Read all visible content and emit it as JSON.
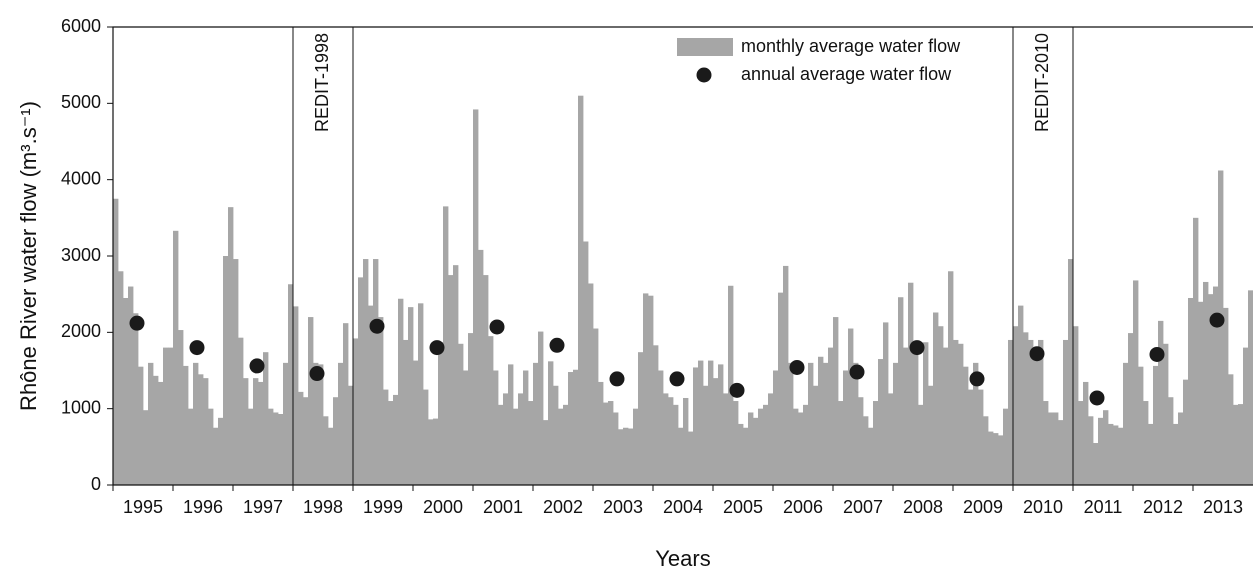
{
  "chart_data": {
    "type": "bar",
    "x_label": "Years",
    "y_label": "Rhône River water flow (m³.s⁻¹)",
    "categories": [
      "1995",
      "1996",
      "1997",
      "1998",
      "1999",
      "2000",
      "2001",
      "2002",
      "2003",
      "2004",
      "2005",
      "2006",
      "2007",
      "2008",
      "2009",
      "2010",
      "2011",
      "2012",
      "2013"
    ],
    "series": [
      {
        "name": "monthly average water flow",
        "type": "bar",
        "color": "#a6a6a6",
        "values": [
          [
            3750,
            2800,
            2450,
            2600,
            2250,
            1550,
            980,
            1600,
            1430,
            1350,
            1800,
            1800
          ],
          [
            3330,
            2030,
            1560,
            1000,
            1600,
            1450,
            1400,
            1000,
            750,
            880,
            3000,
            3640
          ],
          [
            2960,
            1930,
            1400,
            1000,
            1400,
            1350,
            1740,
            1000,
            950,
            930,
            1600,
            2630
          ],
          [
            2340,
            1220,
            1150,
            2200,
            1600,
            1580,
            900,
            750,
            1150,
            1600,
            2120,
            1300
          ],
          [
            1920,
            2720,
            2960,
            2350,
            2960,
            2200,
            1250,
            1100,
            1180,
            2440,
            1900,
            2330
          ],
          [
            1630,
            2380,
            1250,
            860,
            870,
            1870,
            3650,
            2750,
            2880,
            1850,
            1500,
            1990
          ],
          [
            4920,
            3080,
            2750,
            1950,
            1500,
            1050,
            1200,
            1580,
            1000,
            1200,
            1500,
            1100
          ],
          [
            1600,
            2010,
            850,
            1620,
            1300,
            1000,
            1050,
            1480,
            1510,
            5100,
            3190,
            2640
          ],
          [
            2050,
            1350,
            1080,
            1100,
            950,
            730,
            750,
            740,
            1000,
            1740,
            2510,
            2480
          ],
          [
            1830,
            1500,
            1200,
            1150,
            1050,
            750,
            1140,
            700,
            1540,
            1630,
            1300,
            1630
          ],
          [
            1400,
            1580,
            1200,
            2610,
            1100,
            800,
            750,
            950,
            880,
            1000,
            1050,
            1200
          ],
          [
            1500,
            2520,
            2870,
            1600,
            1000,
            950,
            1050,
            1600,
            1300,
            1680,
            1600,
            1800
          ],
          [
            2200,
            1100,
            1500,
            2050,
            1600,
            1150,
            900,
            750,
            1100,
            1650,
            2130,
            1200
          ],
          [
            1600,
            2460,
            1800,
            2650,
            1800,
            1050,
            1870,
            1300,
            2260,
            2080,
            1800,
            2800
          ],
          [
            1900,
            1850,
            1550,
            1250,
            1600,
            1250,
            900,
            700,
            680,
            650,
            1000,
            1900
          ],
          [
            2080,
            2350,
            2000,
            1900,
            1800,
            1900,
            1100,
            950,
            950,
            850,
            1900,
            2960
          ],
          [
            2080,
            1100,
            1350,
            900,
            550,
            880,
            980,
            800,
            780,
            750,
            1600,
            1990
          ],
          [
            2680,
            1550,
            1100,
            800,
            1560,
            2150,
            1850,
            1150,
            800,
            950,
            1380,
            2450
          ],
          [
            3500,
            2400,
            2660,
            2500,
            2600,
            4120,
            2320,
            1450,
            1050,
            1060,
            1800,
            2550
          ]
        ]
      },
      {
        "name": "annual average water flow",
        "type": "scatter",
        "color": "#1a1a1a",
        "values": [
          2120,
          1800,
          1560,
          1460,
          2080,
          1800,
          2070,
          1830,
          1390,
          1390,
          1240,
          1540,
          1480,
          1800,
          1390,
          1720,
          1140,
          1710,
          2160
        ]
      }
    ],
    "annotations": [
      {
        "text": "REDIT-1998",
        "category": "1998"
      },
      {
        "text": "REDIT-2010",
        "category": "2010"
      }
    ],
    "ylim": [
      0,
      6000
    ],
    "yticks": [
      0,
      1000,
      2000,
      3000,
      4000,
      5000,
      6000
    ],
    "legend": "top-right"
  }
}
